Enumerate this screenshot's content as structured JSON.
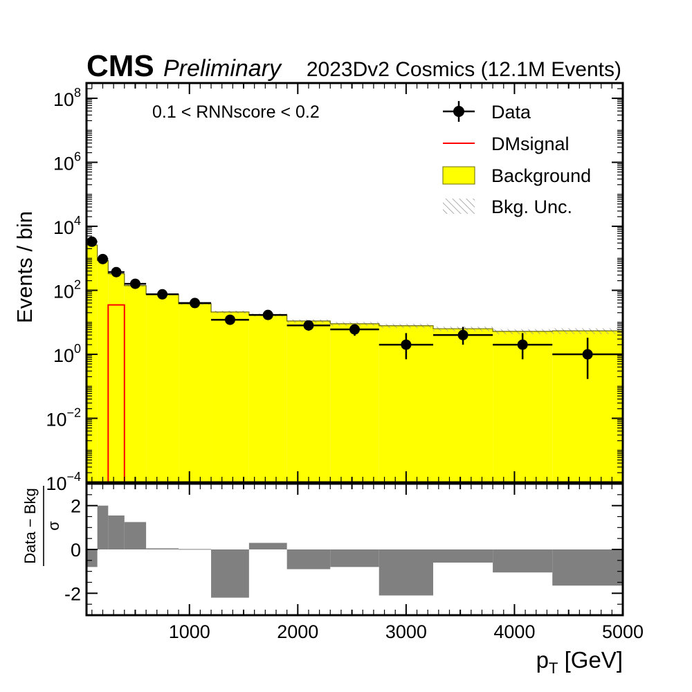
{
  "header": {
    "experiment": "CMS",
    "status": "Preliminary",
    "lumi_label": "2023Dv2 Cosmics (12.1M Events)"
  },
  "main_panel": {
    "category_label": "0.1 < RNNscore < 0.2",
    "legend": {
      "data": "Data",
      "signal": "DMsignal",
      "background": "Background",
      "unc": "Bkg. Unc."
    },
    "ylabel": "Events / bin"
  },
  "ratio_panel": {
    "ylabel_numerator": "Data − Bkg",
    "ylabel_denominator": "σ"
  },
  "xlabel_main": "p",
  "xlabel_sub": "T",
  "xlabel_unit": " [GeV]",
  "chart_data": [
    {
      "type": "bar",
      "panel": "main",
      "yscale": "log",
      "xlim": [
        50,
        5000
      ],
      "ylim": [
        0.0001,
        300000000
      ],
      "xticks": [
        1000,
        2000,
        3000,
        4000,
        5000
      ],
      "yticks": [
        {
          "value": 0.0001,
          "base": "10",
          "exp": "−4"
        },
        {
          "value": 0.01,
          "base": "10",
          "exp": "−2"
        },
        {
          "value": 1,
          "base": "10",
          "exp": "0"
        },
        {
          "value": 100,
          "base": "10",
          "exp": "2"
        },
        {
          "value": 10000,
          "base": "10",
          "exp": "4"
        },
        {
          "value": 1000000,
          "base": "10",
          "exp": "6"
        },
        {
          "value": 100000000,
          "base": "10",
          "exp": "8"
        }
      ],
      "bin_edges": [
        50,
        150,
        250,
        400,
        600,
        900,
        1200,
        1550,
        1900,
        2300,
        2750,
        3250,
        3800,
        4350,
        5000
      ],
      "background": [
        2600,
        850,
        330,
        140,
        75,
        38,
        21,
        17,
        11,
        9,
        7.8,
        6.3,
        5.2,
        5.4
      ],
      "background_unc": [
        0.05,
        0.05,
        0.06,
        0.06,
        0.07,
        0.08,
        0.1,
        0.1,
        0.12,
        0.14,
        0.15,
        0.16,
        0.18,
        0.2
      ],
      "signal": {
        "x": [
          250,
          400
        ],
        "value": 35
      },
      "data_points": [
        {
          "x": 100,
          "y": 3300,
          "ylo": 3200,
          "yhi": 3400,
          "xlo": 50,
          "xhi": 150
        },
        {
          "x": 200,
          "y": 950,
          "ylo": 900,
          "yhi": 1000,
          "xlo": 150,
          "xhi": 250
        },
        {
          "x": 325,
          "y": 370,
          "ylo": 350,
          "yhi": 390,
          "xlo": 250,
          "xhi": 400
        },
        {
          "x": 500,
          "y": 160,
          "ylo": 148,
          "yhi": 172,
          "xlo": 400,
          "xhi": 600
        },
        {
          "x": 750,
          "y": 75,
          "ylo": 67,
          "yhi": 84,
          "xlo": 600,
          "xhi": 900
        },
        {
          "x": 1050,
          "y": 40,
          "ylo": 34,
          "yhi": 46,
          "xlo": 900,
          "xhi": 1200
        },
        {
          "x": 1375,
          "y": 12,
          "ylo": 9,
          "yhi": 15,
          "xlo": 1200,
          "xhi": 1550
        },
        {
          "x": 1725,
          "y": 17,
          "ylo": 13,
          "yhi": 21,
          "xlo": 1550,
          "xhi": 1900
        },
        {
          "x": 2100,
          "y": 8,
          "ylo": 5.5,
          "yhi": 11,
          "xlo": 1900,
          "xhi": 2300
        },
        {
          "x": 2525,
          "y": 6,
          "ylo": 3.8,
          "yhi": 8.5,
          "xlo": 2300,
          "xhi": 2750
        },
        {
          "x": 3000,
          "y": 2,
          "ylo": 0.7,
          "yhi": 4.6,
          "xlo": 2750,
          "xhi": 3250
        },
        {
          "x": 3525,
          "y": 4,
          "ylo": 2,
          "yhi": 7.2,
          "xlo": 3250,
          "xhi": 3800
        },
        {
          "x": 4075,
          "y": 2,
          "ylo": 0.7,
          "yhi": 4.6,
          "xlo": 3800,
          "xhi": 4350
        },
        {
          "x": 4675,
          "y": 1,
          "ylo": 0.17,
          "yhi": 3.3,
          "xlo": 4350,
          "xhi": 5000
        }
      ]
    },
    {
      "type": "bar",
      "panel": "ratio",
      "xlim": [
        50,
        5000
      ],
      "ylim": [
        -3,
        3
      ],
      "yticks": [
        -2,
        0,
        2
      ],
      "ytick_labels": [
        "-2",
        "0",
        "2"
      ],
      "xtick_labels": [
        "1000",
        "2000",
        "3000",
        "4000",
        "5000"
      ],
      "bin_edges": [
        50,
        150,
        250,
        400,
        600,
        900,
        1200,
        1550,
        1900,
        2300,
        2750,
        3250,
        3800,
        4350,
        5000
      ],
      "values": [
        -0.8,
        2.0,
        1.55,
        1.25,
        0.05,
        0.02,
        -2.2,
        0.3,
        -0.9,
        -0.8,
        -2.1,
        -0.6,
        -1.05,
        -1.65
      ]
    }
  ],
  "colors": {
    "background_fill": "#ffff00",
    "background_edge": "#6b6b00",
    "signal": "#ff0000",
    "ratio_fill": "#808080",
    "data": "#000000",
    "hatch": "#999999"
  }
}
